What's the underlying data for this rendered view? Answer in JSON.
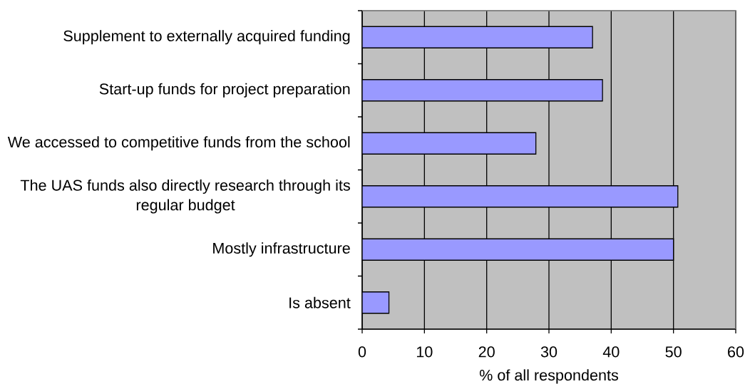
{
  "chart_data": {
    "type": "bar",
    "orientation": "horizontal",
    "categories": [
      "Supplement to externally acquired funding",
      "Start-up funds for project preparation",
      "We accessed to competitive funds from the school",
      "The UAS funds also directly research through its regular budget",
      "Mostly infrastructure",
      "Is absent"
    ],
    "values": [
      37,
      38.6,
      27.9,
      50.7,
      50,
      4.3
    ],
    "color": "#9999ff",
    "xlabel": "% of all respondents",
    "xlim": [
      0,
      60
    ],
    "xticks": [
      0,
      10,
      20,
      30,
      40,
      50,
      60
    ],
    "grid": "x"
  }
}
